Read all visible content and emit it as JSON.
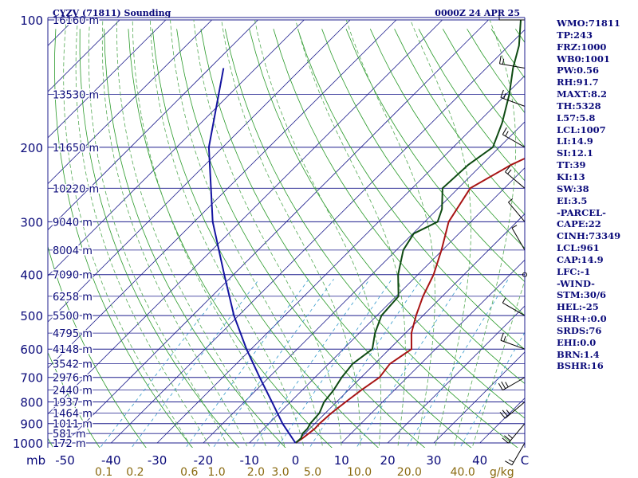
{
  "header": {
    "station": "CYZV (71811) Sounding",
    "time": "0000Z 24 APR 25"
  },
  "pressure_labels": [
    "100",
    "200",
    "300",
    "400",
    "500",
    "600",
    "700",
    "800",
    "900",
    "1000"
  ],
  "height_labels": [
    "16160 m",
    "13530 m",
    "11650 m",
    "10220 m",
    "9040 m",
    "8004 m",
    "7090 m",
    "6258 m",
    "5500 m",
    "4795 m",
    "4148 m",
    "3542 m",
    "2976 m",
    "2440 m",
    "1937 m",
    "1464 m",
    "1011 m",
    "581 m",
    "172 m"
  ],
  "temp_axis": {
    "unit_label": "mb",
    "labels": [
      "-50",
      "-40",
      "-30",
      "-20",
      "-10",
      "0",
      "10",
      "20",
      "30",
      "40"
    ],
    "right_label": "C"
  },
  "mixing_axis": {
    "labels": [
      "0.1",
      "0.2",
      "0.6",
      "1.0",
      "2.0",
      "3.0",
      "5.0",
      "10.0",
      "20.0",
      "40.0"
    ],
    "unit": "g/kg"
  },
  "indices": [
    "WMO:71811",
    "TP:243",
    "FRZ:1000",
    "WB0:1001",
    "PW:0.56",
    "RH:91.7",
    "MAXT:8.2",
    "TH:5328",
    "L57:5.8",
    "LCL:1007",
    "LI:14.9",
    "SI:12.1",
    "TT:39",
    "KI:13",
    "SW:38",
    "EI:3.5",
    "-PARCEL-",
    "CAPE:22",
    "CINH:73349",
    "LCL:961",
    "CAP:14.9",
    "LFC:-1",
    "-WIND-",
    "STM:30/6",
    "HEL:-25",
    "SHR+:0.0",
    "SRDS:76",
    "EHI:0.0",
    "BRN:1.4",
    "BSHR:16"
  ],
  "colors": {
    "isobar": "#1c1c8c",
    "isotherm": "#1c1c8c",
    "dry_adiabat": "#2a9a2a",
    "moist_adiabat": "#55aa55",
    "mixing_ratio": "#3399cc",
    "temperature": "#a81414",
    "dewpoint": "#0e4a12",
    "parcel": "#1414a0",
    "text": "#0a0a7a",
    "mixing_text": "#8a6a10"
  },
  "chart_data": {
    "type": "line",
    "yscale": "log",
    "pressure_range_mb": [
      1000,
      100
    ],
    "temperature_range_c": [
      -50,
      40
    ],
    "series": [
      {
        "p": [
          1000,
          975,
          950,
          925,
          900,
          850,
          800,
          750,
          700,
          650,
          600,
          550,
          500,
          450,
          400,
          350,
          300,
          250,
          220,
          200,
          175,
          150,
          130,
          115,
          100
        ],
        "values": [
          0,
          0.5,
          0.8,
          1.1,
          1.0,
          1.3,
          2.0,
          2.8,
          4.0,
          3.3,
          4.8,
          1.3,
          -1.5,
          -4.2,
          -6.6,
          -10.2,
          -14.8,
          -17.4,
          -13.6,
          -9.2,
          -5.0,
          1.3,
          3.8,
          4.8,
          5.2
        ]
      },
      {
        "p": [
          1000,
          975,
          950,
          925,
          900,
          850,
          800,
          750,
          700,
          650,
          600,
          550,
          500,
          450,
          400,
          350,
          320,
          300,
          280,
          250,
          220,
          200,
          175,
          150,
          130,
          115,
          100
        ],
        "values": [
          0,
          0.2,
          -0.5,
          -0.5,
          -1.0,
          -1.3,
          -2.7,
          -3.2,
          -4.2,
          -4.8,
          -3.7,
          -6.6,
          -9.0,
          -9.5,
          -14.3,
          -18.5,
          -19.8,
          -17.2,
          -19.0,
          -23.4,
          -22.9,
          -21.4,
          -24.7,
          -29.3,
          -34.2,
          -37.8,
          -43.0
        ]
      },
      {
        "p": [
          1000,
          900,
          800,
          700,
          600,
          500,
          400,
          300,
          200,
          130
        ],
        "values": [
          0,
          -7,
          -14,
          -22,
          -31,
          -41,
          -52,
          -66,
          -83,
          -97
        ]
      }
    ],
    "wind_barbs": [
      {
        "p": 100,
        "dir": 270,
        "kt": 5
      },
      {
        "p": 130,
        "dir": 280,
        "kt": 15
      },
      {
        "p": 160,
        "dir": 290,
        "kt": 15
      },
      {
        "p": 200,
        "dir": 300,
        "kt": 15
      },
      {
        "p": 250,
        "dir": 310,
        "kt": 15
      },
      {
        "p": 300,
        "dir": 320,
        "kt": 5
      },
      {
        "p": 350,
        "dir": 330,
        "kt": 5
      },
      {
        "p": 400,
        "dir": 0,
        "kt": 0
      },
      {
        "p": 500,
        "dir": 300,
        "kt": 5
      },
      {
        "p": 600,
        "dir": 290,
        "kt": 15
      },
      {
        "p": 700,
        "dir": 240,
        "kt": 25
      },
      {
        "p": 800,
        "dir": 230,
        "kt": 25
      },
      {
        "p": 900,
        "dir": 220,
        "kt": 25
      },
      {
        "p": 1000,
        "dir": 210,
        "kt": 15
      }
    ]
  }
}
